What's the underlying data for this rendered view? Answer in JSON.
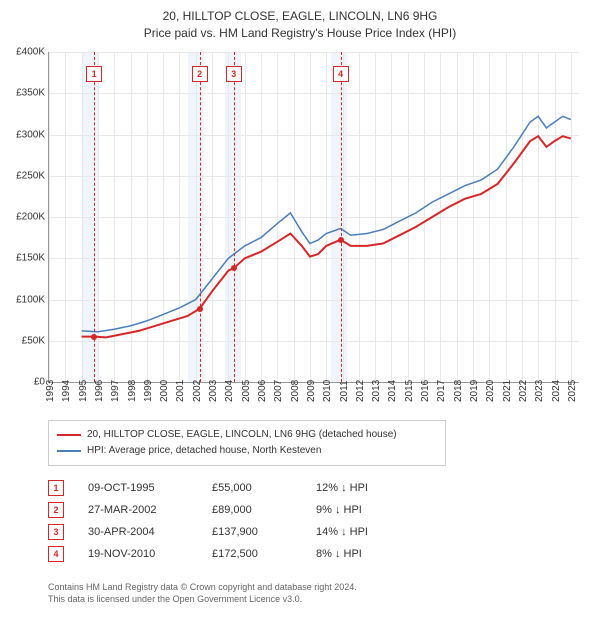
{
  "title": {
    "line1": "20, HILLTOP CLOSE, EAGLE, LINCOLN, LN6 9HG",
    "line2": "Price paid vs. HM Land Registry's House Price Index (HPI)"
  },
  "chart": {
    "type": "line",
    "x": {
      "min": 1993,
      "max": 2025.5,
      "ticks": [
        1993,
        1994,
        1995,
        1996,
        1997,
        1998,
        1999,
        2000,
        2001,
        2002,
        2003,
        2004,
        2005,
        2006,
        2007,
        2008,
        2009,
        2010,
        2011,
        2012,
        2013,
        2014,
        2015,
        2016,
        2017,
        2018,
        2019,
        2020,
        2021,
        2022,
        2023,
        2024,
        2025
      ]
    },
    "y": {
      "min": 0,
      "max": 400000,
      "step": 50000,
      "prefix": "£",
      "suffix": "K",
      "divisor": 1000
    },
    "background": "#ffffff",
    "grid_color": "#e8e8e8",
    "axis_color": "#999999",
    "band_color": "#f0f4fb",
    "bands": [
      {
        "from": 1995.0,
        "to": 1996.0
      },
      {
        "from": 2001.5,
        "to": 2002.5
      },
      {
        "from": 2003.8,
        "to": 2004.8
      },
      {
        "from": 2010.3,
        "to": 2011.3
      }
    ],
    "vlines": [
      {
        "x": 1995.77,
        "label": "1"
      },
      {
        "x": 2002.24,
        "label": "2"
      },
      {
        "x": 2004.33,
        "label": "3"
      },
      {
        "x": 2010.88,
        "label": "4"
      }
    ],
    "series": [
      {
        "name": "price_paid",
        "color": "#d62728",
        "width": 2,
        "points": [
          [
            1995.0,
            55000
          ],
          [
            1995.77,
            55000
          ],
          [
            1996.5,
            54000
          ],
          [
            1997.5,
            58000
          ],
          [
            1998.5,
            62000
          ],
          [
            1999.5,
            68000
          ],
          [
            2000.5,
            74000
          ],
          [
            2001.5,
            80000
          ],
          [
            2002.24,
            89000
          ],
          [
            2003.0,
            110000
          ],
          [
            2004.0,
            135000
          ],
          [
            2004.33,
            137900
          ],
          [
            2005.0,
            150000
          ],
          [
            2006.0,
            158000
          ],
          [
            2007.0,
            170000
          ],
          [
            2007.8,
            180000
          ],
          [
            2008.5,
            165000
          ],
          [
            2009.0,
            152000
          ],
          [
            2009.5,
            155000
          ],
          [
            2010.0,
            165000
          ],
          [
            2010.88,
            172500
          ],
          [
            2011.5,
            165000
          ],
          [
            2012.5,
            165000
          ],
          [
            2013.5,
            168000
          ],
          [
            2014.5,
            178000
          ],
          [
            2015.5,
            188000
          ],
          [
            2016.5,
            200000
          ],
          [
            2017.5,
            212000
          ],
          [
            2018.5,
            222000
          ],
          [
            2019.5,
            228000
          ],
          [
            2020.5,
            240000
          ],
          [
            2021.5,
            265000
          ],
          [
            2022.5,
            292000
          ],
          [
            2023.0,
            298000
          ],
          [
            2023.5,
            285000
          ],
          [
            2024.0,
            292000
          ],
          [
            2024.5,
            298000
          ],
          [
            2025.0,
            295000
          ]
        ],
        "dots": [
          [
            1995.77,
            55000
          ],
          [
            2002.24,
            89000
          ],
          [
            2004.33,
            137900
          ],
          [
            2010.88,
            172500
          ]
        ]
      },
      {
        "name": "hpi",
        "color": "#4a7ebb",
        "width": 1.5,
        "points": [
          [
            1995.0,
            62000
          ],
          [
            1996.0,
            61000
          ],
          [
            1997.0,
            64000
          ],
          [
            1998.0,
            68000
          ],
          [
            1999.0,
            74000
          ],
          [
            2000.0,
            82000
          ],
          [
            2001.0,
            90000
          ],
          [
            2002.0,
            100000
          ],
          [
            2003.0,
            125000
          ],
          [
            2004.0,
            150000
          ],
          [
            2005.0,
            165000
          ],
          [
            2006.0,
            175000
          ],
          [
            2007.0,
            192000
          ],
          [
            2007.8,
            205000
          ],
          [
            2008.5,
            182000
          ],
          [
            2009.0,
            168000
          ],
          [
            2009.5,
            172000
          ],
          [
            2010.0,
            180000
          ],
          [
            2010.88,
            186000
          ],
          [
            2011.5,
            178000
          ],
          [
            2012.5,
            180000
          ],
          [
            2013.5,
            185000
          ],
          [
            2014.5,
            195000
          ],
          [
            2015.5,
            205000
          ],
          [
            2016.5,
            218000
          ],
          [
            2017.5,
            228000
          ],
          [
            2018.5,
            238000
          ],
          [
            2019.5,
            245000
          ],
          [
            2020.5,
            258000
          ],
          [
            2021.5,
            285000
          ],
          [
            2022.5,
            315000
          ],
          [
            2023.0,
            322000
          ],
          [
            2023.5,
            308000
          ],
          [
            2024.0,
            315000
          ],
          [
            2024.5,
            322000
          ],
          [
            2025.0,
            318000
          ]
        ]
      }
    ]
  },
  "legend": {
    "items": [
      {
        "color": "#d62728",
        "label": "20, HILLTOP CLOSE, EAGLE, LINCOLN, LN6 9HG (detached house)"
      },
      {
        "color": "#4a7ebb",
        "label": "HPI: Average price, detached house, North Kesteven"
      }
    ]
  },
  "transactions": [
    {
      "n": "1",
      "date": "09-OCT-1995",
      "price": "£55,000",
      "diff": "12% ↓ HPI"
    },
    {
      "n": "2",
      "date": "27-MAR-2002",
      "price": "£89,000",
      "diff": "9% ↓ HPI"
    },
    {
      "n": "3",
      "date": "30-APR-2004",
      "price": "£137,900",
      "diff": "14% ↓ HPI"
    },
    {
      "n": "4",
      "date": "19-NOV-2010",
      "price": "£172,500",
      "diff": "8% ↓ HPI"
    }
  ],
  "footer": {
    "line1": "Contains HM Land Registry data © Crown copyright and database right 2024.",
    "line2": "This data is licensed under the Open Government Licence v3.0."
  }
}
